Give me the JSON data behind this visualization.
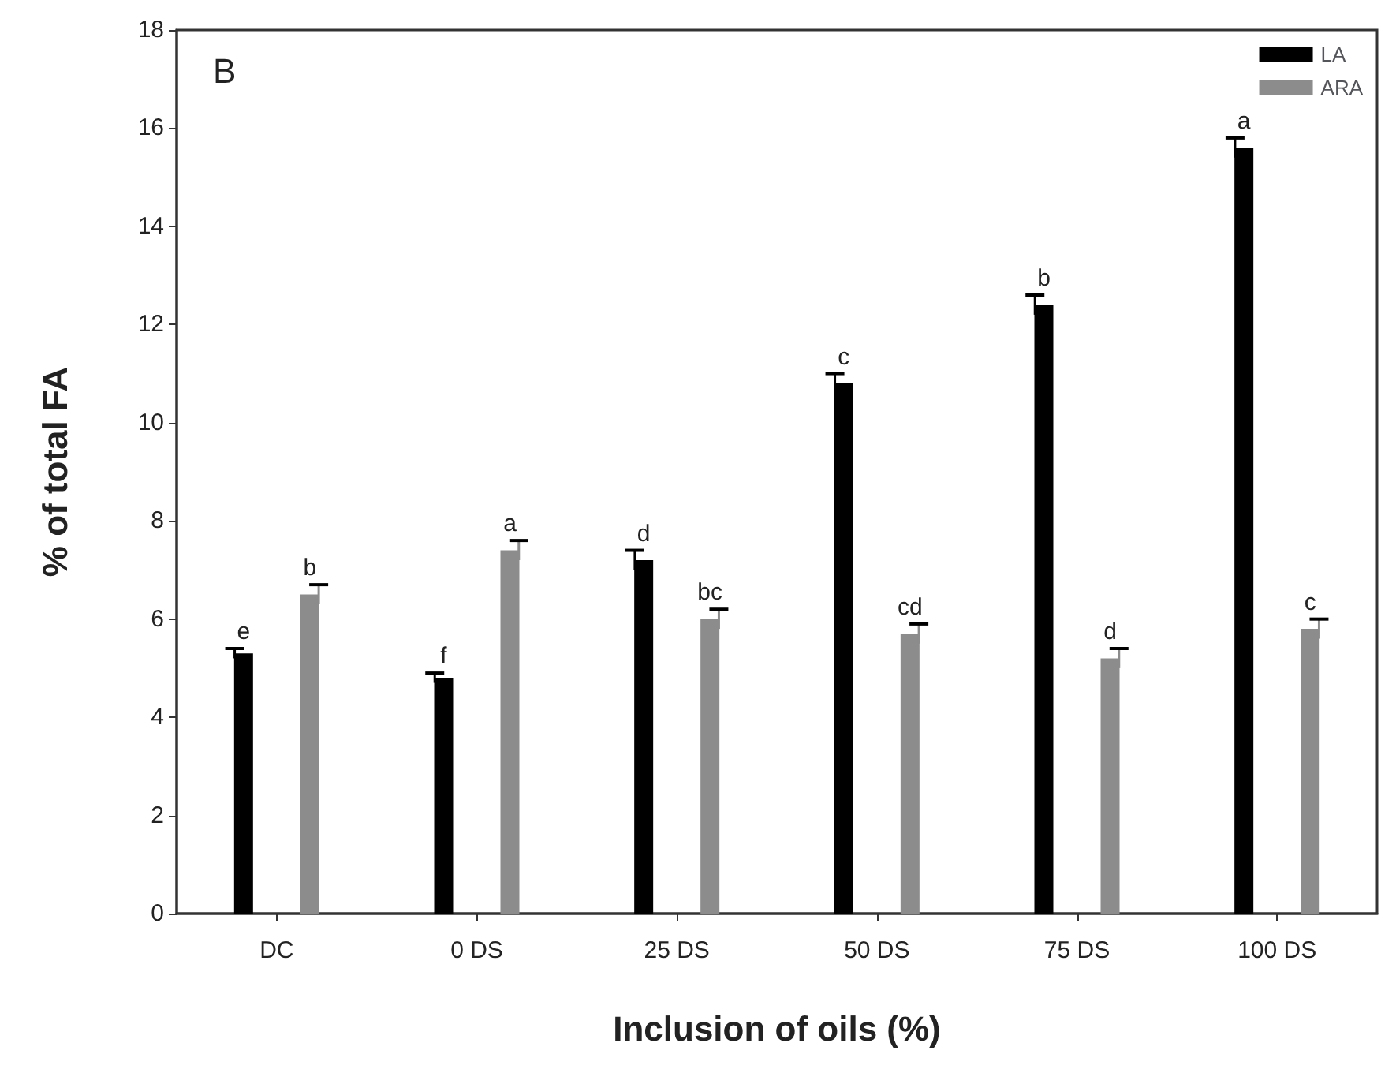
{
  "chart_data": {
    "type": "bar",
    "title": "B",
    "xlabel": "Inclusion of oils (%)",
    "ylabel": "% of total FA",
    "categories": [
      "DC",
      "0 DS",
      "25 DS",
      "50 DS",
      "75 DS",
      "100 DS"
    ],
    "series": [
      {
        "name": "LA",
        "color": "#000000",
        "values": [
          5.3,
          4.8,
          7.2,
          10.8,
          12.4,
          15.6
        ],
        "errors": [
          0.1,
          0.1,
          0.2,
          0.2,
          0.2,
          0.2
        ],
        "value_labels": [
          "e",
          "f",
          "d",
          "c",
          "b",
          "a"
        ]
      },
      {
        "name": "ARA",
        "color": "#8c8c8c",
        "values": [
          6.5,
          7.4,
          6.0,
          5.7,
          5.2,
          5.8
        ],
        "errors": [
          0.2,
          0.2,
          0.2,
          0.2,
          0.2,
          0.2
        ],
        "value_labels": [
          "b",
          "a",
          "bc",
          "cd",
          "d",
          "c"
        ]
      }
    ],
    "ylim": [
      0,
      18
    ],
    "yticks": [
      0,
      2,
      4,
      6,
      8,
      10,
      12,
      14,
      16,
      18
    ],
    "grid": false,
    "legend": "top right"
  }
}
